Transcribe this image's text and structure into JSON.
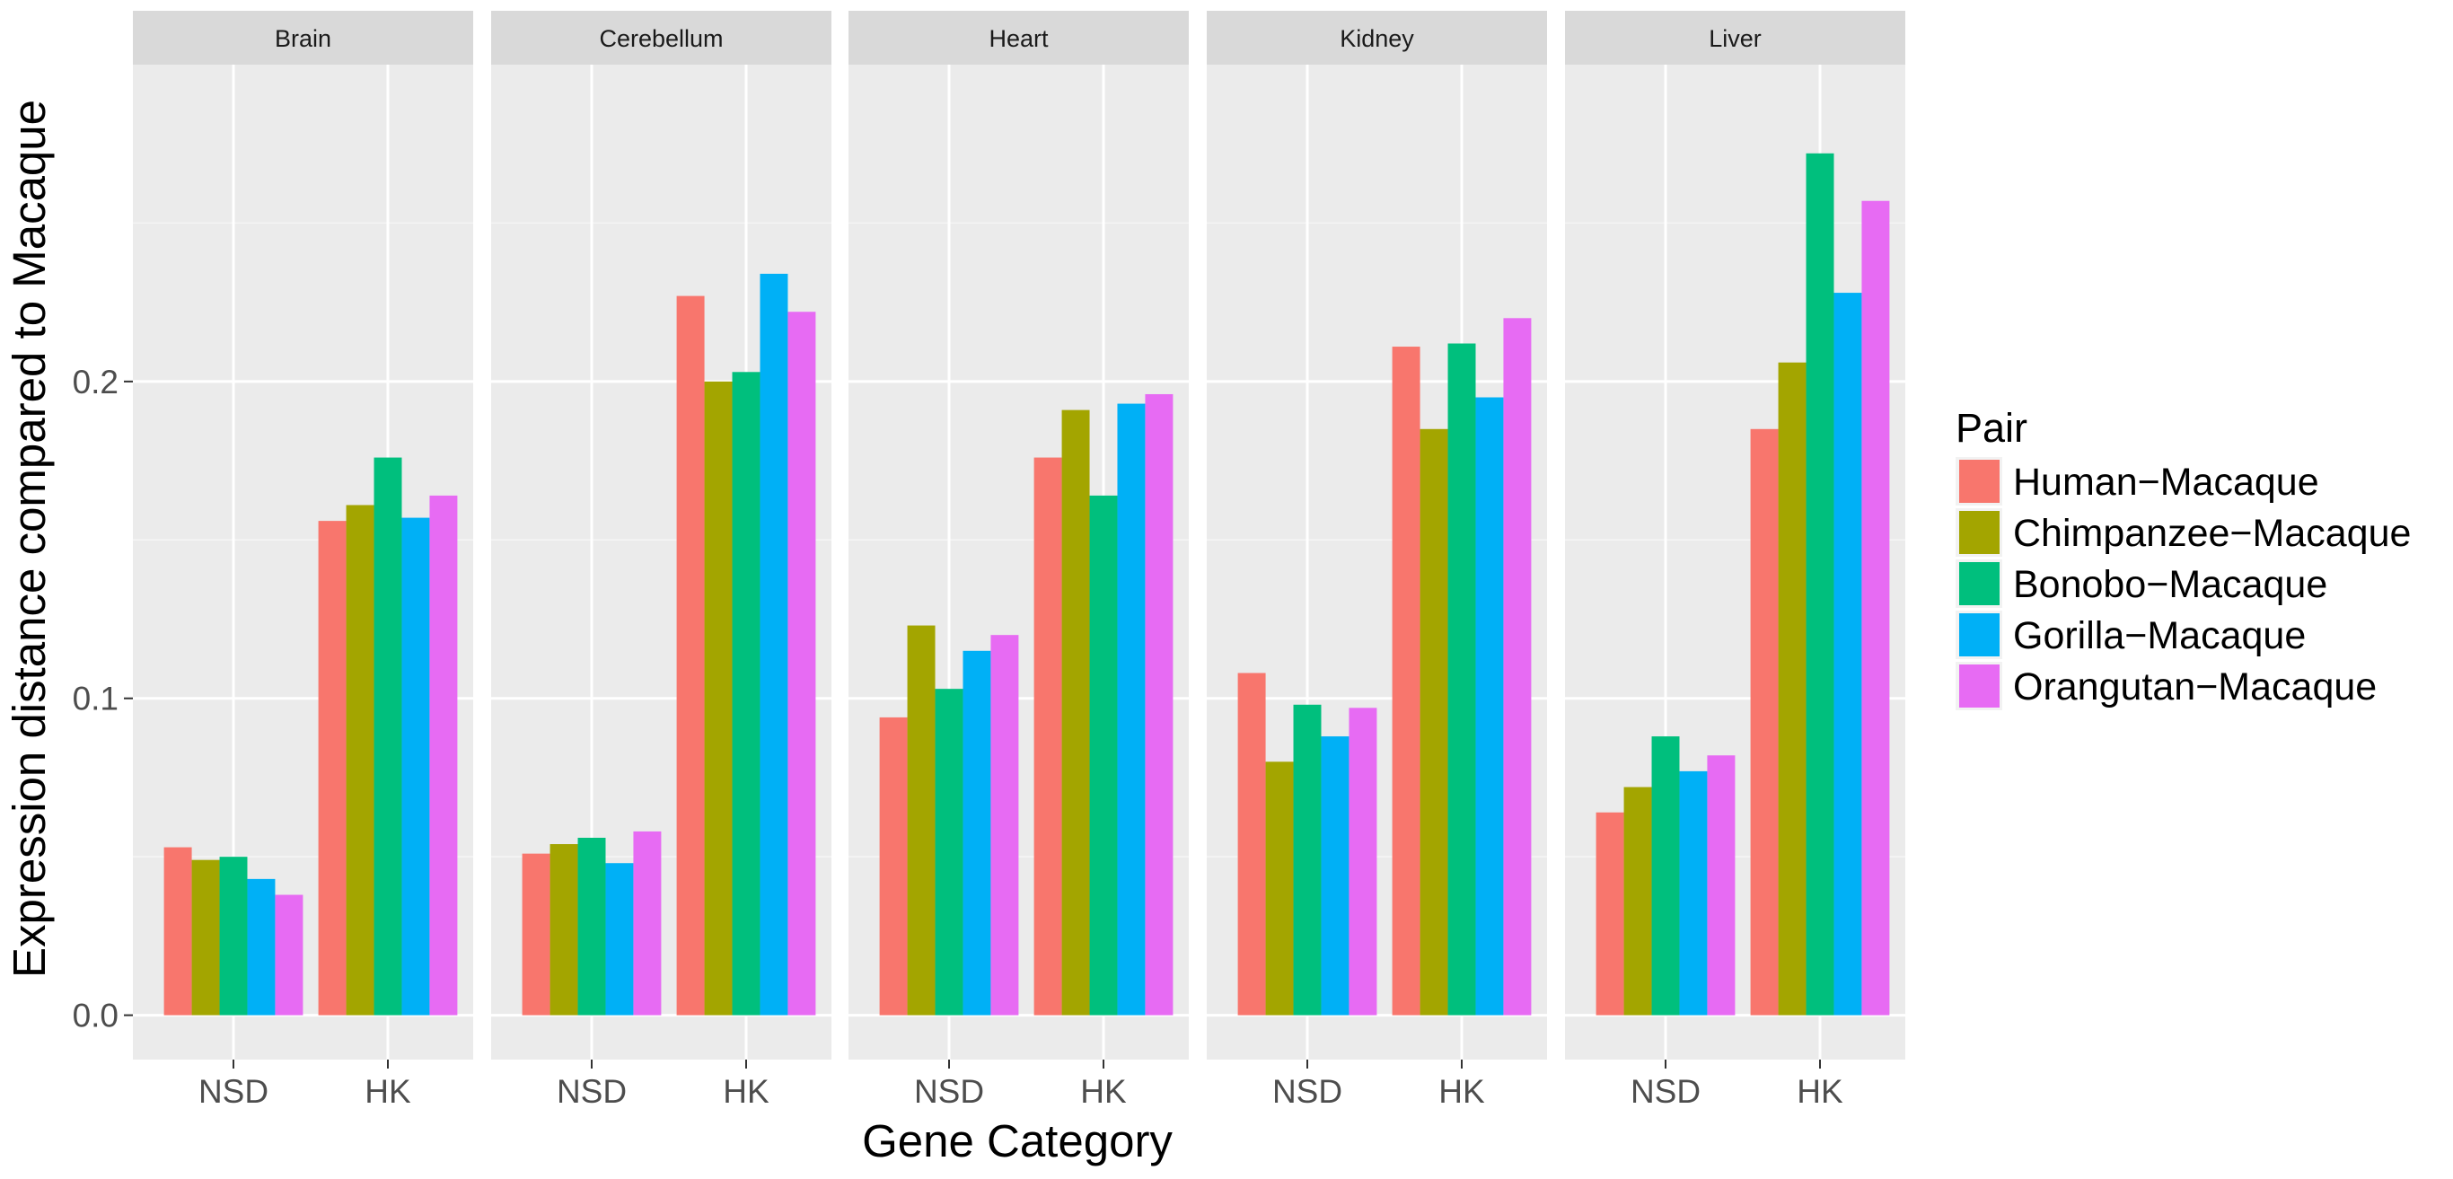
{
  "chart_data": {
    "type": "bar",
    "facet_by": "tissue",
    "facets": [
      "Brain",
      "Cerebellum",
      "Heart",
      "Kidney",
      "Liver"
    ],
    "categories": [
      "NSD",
      "HK"
    ],
    "xlabel": "Gene Category",
    "ylabel": "Expression distance compared to Macaque",
    "ylim": [
      -0.014,
      0.3
    ],
    "yticks": [
      0.0,
      0.1,
      0.2
    ],
    "ytick_labels": [
      "0.0",
      "0.1",
      "0.2"
    ],
    "legend": {
      "title": "Pair",
      "position": "right"
    },
    "grid": true,
    "series": [
      {
        "name": "Human−Macaque",
        "color": "#F8766D",
        "values": {
          "Brain": [
            0.053,
            0.156
          ],
          "Cerebellum": [
            0.051,
            0.227
          ],
          "Heart": [
            0.094,
            0.176
          ],
          "Kidney": [
            0.108,
            0.211
          ],
          "Liver": [
            0.064,
            0.185
          ]
        }
      },
      {
        "name": "Chimpanzee−Macaque",
        "color": "#A3A500",
        "values": {
          "Brain": [
            0.049,
            0.161
          ],
          "Cerebellum": [
            0.054,
            0.2
          ],
          "Heart": [
            0.123,
            0.191
          ],
          "Kidney": [
            0.08,
            0.185
          ],
          "Liver": [
            0.072,
            0.206
          ]
        }
      },
      {
        "name": "Bonobo−Macaque",
        "color": "#00BF7D",
        "values": {
          "Brain": [
            0.05,
            0.176
          ],
          "Cerebellum": [
            0.056,
            0.203
          ],
          "Heart": [
            0.103,
            0.164
          ],
          "Kidney": [
            0.098,
            0.212
          ],
          "Liver": [
            0.088,
            0.272
          ]
        }
      },
      {
        "name": "Gorilla−Macaque",
        "color": "#00B0F6",
        "values": {
          "Brain": [
            0.043,
            0.157
          ],
          "Cerebellum": [
            0.048,
            0.234
          ],
          "Heart": [
            0.115,
            0.193
          ],
          "Kidney": [
            0.088,
            0.195
          ],
          "Liver": [
            0.077,
            0.228
          ]
        }
      },
      {
        "name": "Orangutan−Macaque",
        "color": "#E76BF3",
        "values": {
          "Brain": [
            0.038,
            0.164
          ],
          "Cerebellum": [
            0.058,
            0.222
          ],
          "Heart": [
            0.12,
            0.196
          ],
          "Kidney": [
            0.097,
            0.22
          ],
          "Liver": [
            0.082,
            0.257
          ]
        }
      }
    ]
  }
}
